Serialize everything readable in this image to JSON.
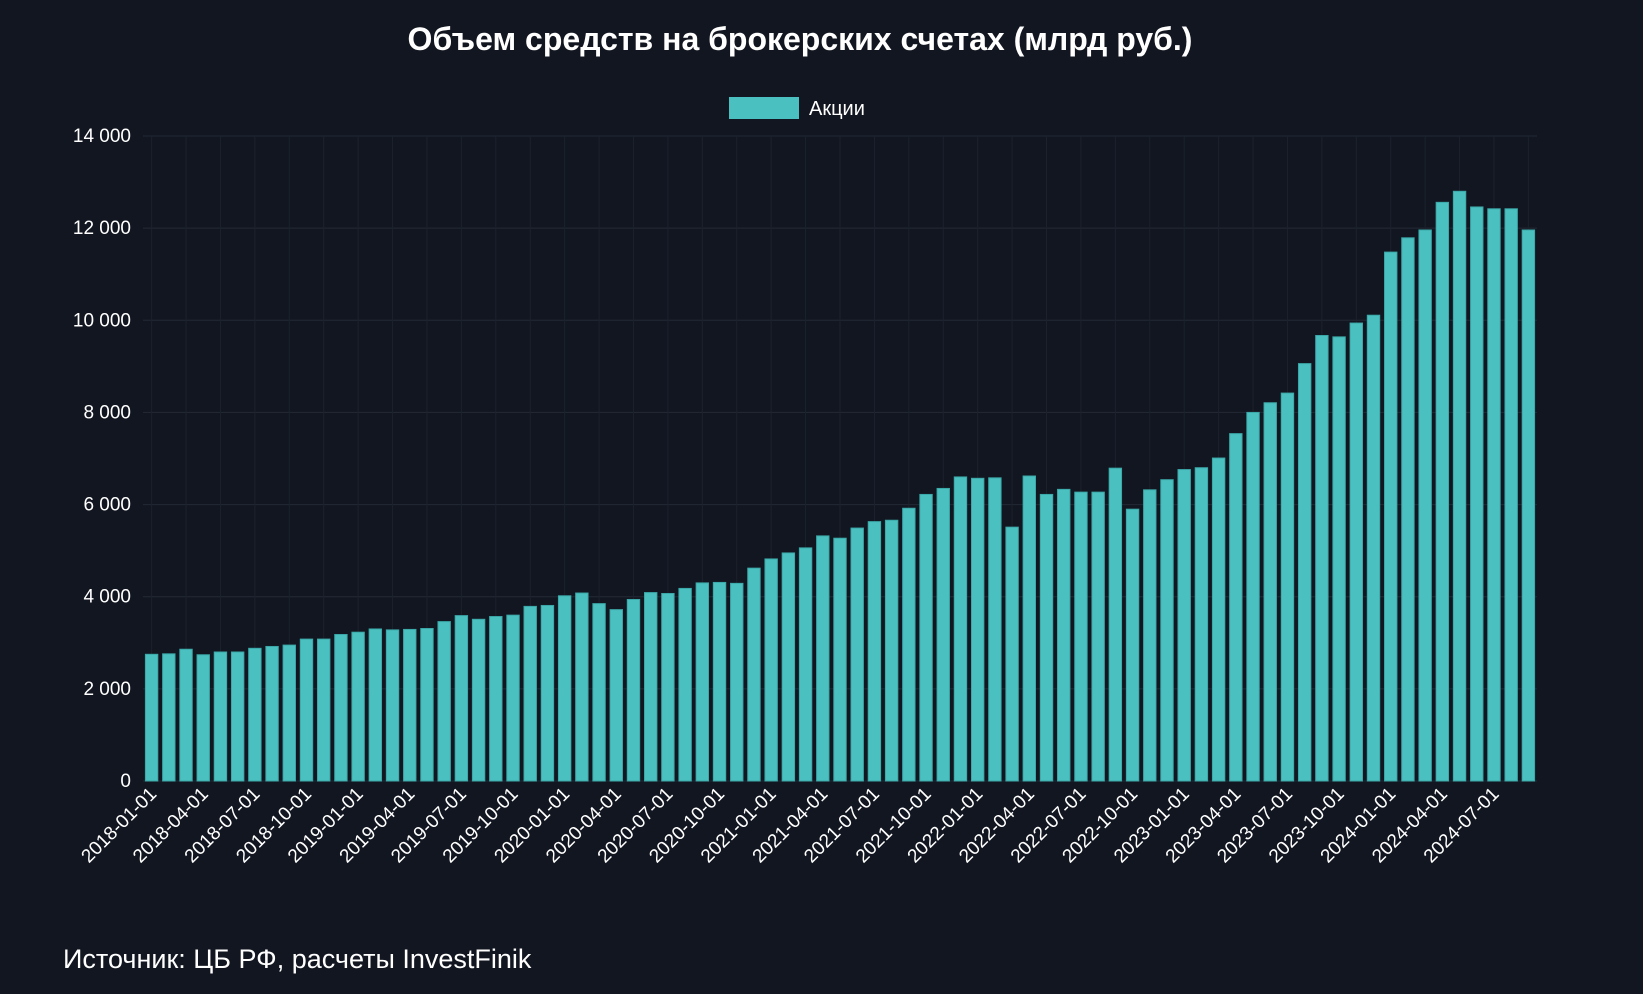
{
  "chart_data": {
    "type": "bar",
    "title": "Объем средств на брокерских счетах (млрд руб.)",
    "xlabel": "",
    "ylabel": "",
    "ylim": [
      0,
      14000
    ],
    "yticks": [
      "0",
      "2 000",
      "4 000",
      "6 000",
      "8 000",
      "10 000",
      "12 000",
      "14 000"
    ],
    "ytick_values": [
      0,
      2000,
      4000,
      6000,
      8000,
      10000,
      12000,
      14000
    ],
    "xticks": [
      "2018-01-01",
      "2018-04-01",
      "2018-07-01",
      "2018-10-01",
      "2019-01-01",
      "2019-04-01",
      "2019-07-01",
      "2019-10-01",
      "2020-01-01",
      "2020-04-01",
      "2020-07-01",
      "2020-10-01",
      "2021-01-01",
      "2021-04-01",
      "2021-07-01",
      "2021-10-01",
      "2022-01-01",
      "2022-04-01",
      "2022-07-01",
      "2022-10-01",
      "2023-01-01",
      "2023-04-01",
      "2023-07-01",
      "2023-10-01",
      "2024-01-01",
      "2024-04-01",
      "2024-07-01"
    ],
    "legend_position": "top",
    "grid": true,
    "series": [
      {
        "name": "Акции",
        "color": "#4bc0c0",
        "values": [
          2750,
          2760,
          2860,
          2740,
          2800,
          2800,
          2880,
          2920,
          2950,
          3080,
          3080,
          3180,
          3230,
          3300,
          3280,
          3290,
          3310,
          3460,
          3590,
          3510,
          3570,
          3600,
          3790,
          3810,
          4020,
          4080,
          3850,
          3720,
          3940,
          4090,
          4070,
          4180,
          4300,
          4310,
          4290,
          4620,
          4820,
          4950,
          5060,
          5320,
          5270,
          5490,
          5630,
          5660,
          5920,
          6220,
          6350,
          6600,
          6570,
          6580,
          5510,
          6620,
          6220,
          6330,
          6270,
          6270,
          6790,
          5900,
          6320,
          6540,
          6760,
          6800,
          7010,
          7540,
          8000,
          8210,
          8420,
          9060,
          9670,
          9640,
          9940,
          10110,
          11480,
          11790,
          11960,
          12560,
          12800,
          12460,
          12420,
          12420,
          11960
        ]
      }
    ]
  },
  "source_note": "Источник: ЦБ РФ, расчеты InvestFinik"
}
